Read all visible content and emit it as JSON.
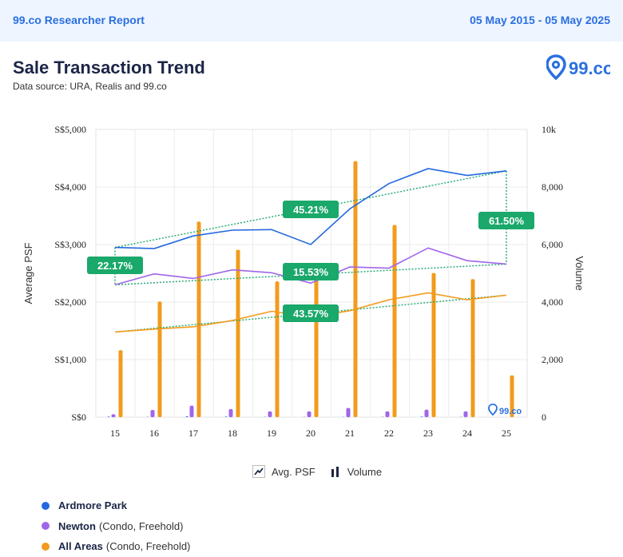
{
  "header": {
    "report_title": "99.co Researcher Report",
    "date_range": "05 May 2015 - 05 May 2025"
  },
  "page": {
    "title": "Sale Transaction Trend",
    "subtitle": "Data source: URA, Realis and 99.co",
    "logo_text": "99.co"
  },
  "legend_top": {
    "avg_psf": "Avg. PSF",
    "volume": "Volume"
  },
  "series_legend": [
    {
      "name": "Ardmore Park",
      "note": "",
      "color": "#2368e0"
    },
    {
      "name": "Newton",
      "note": "(Condo, Freehold)",
      "color": "#a066e8"
    },
    {
      "name": "All Areas",
      "note": "(Condo, Freehold)",
      "color": "#f29b1d"
    }
  ],
  "chart_data": {
    "type": "line",
    "xlabel": "",
    "ylabel": "Average PSF",
    "y2label": "Volume",
    "categories": [
      "15",
      "16",
      "17",
      "18",
      "19",
      "20",
      "21",
      "22",
      "23",
      "24",
      "25"
    ],
    "ylim": [
      0,
      5000
    ],
    "y2lim": [
      0,
      10000
    ],
    "y_ticks": [
      "S$0",
      "S$1,000",
      "S$2,000",
      "S$3,000",
      "S$4,000",
      "S$5,000"
    ],
    "y2_ticks": [
      "0",
      "2,000",
      "4,000",
      "6,000",
      "8,000",
      "10k"
    ],
    "series": [
      {
        "name": "Ardmore Park",
        "color": "#2368e0",
        "values": [
          2950,
          2930,
          3150,
          3250,
          3260,
          3000,
          3620,
          4060,
          4320,
          4200,
          4280
        ]
      },
      {
        "name": "Newton",
        "color": "#a066e8",
        "values": [
          2300,
          2490,
          2410,
          2560,
          2510,
          2330,
          2610,
          2590,
          2940,
          2720,
          2660
        ]
      },
      {
        "name": "All Areas",
        "color": "#f29b1d",
        "values": [
          1480,
          1530,
          1570,
          1680,
          1840,
          1740,
          1850,
          2040,
          2160,
          2040,
          2120
        ]
      }
    ],
    "volume_series": [
      {
        "name": "Ardmore Park",
        "color": "#2368e0",
        "values": [
          20,
          10,
          30,
          20,
          10,
          10,
          10,
          10,
          20,
          10,
          0
        ]
      },
      {
        "name": "Newton",
        "color": "#a066e8",
        "values": [
          100,
          250,
          400,
          280,
          200,
          200,
          320,
          200,
          260,
          200,
          0
        ]
      },
      {
        "name": "All Areas",
        "color": "#f29b1d",
        "values": [
          2330,
          4020,
          6800,
          5820,
          4720,
          4770,
          8900,
          6680,
          5010,
          4800,
          1450
        ]
      }
    ],
    "trend_labels": [
      {
        "series": "Ardmore Park",
        "text": "45.21%"
      },
      {
        "series": "Newton",
        "text": "15.53%"
      },
      {
        "series": "All Areas",
        "text": "43.57%"
      },
      {
        "series": "Ardmore Park",
        "text": "61.50%"
      },
      {
        "series": "Newton",
        "text": "22.17%"
      }
    ],
    "grid": true
  }
}
